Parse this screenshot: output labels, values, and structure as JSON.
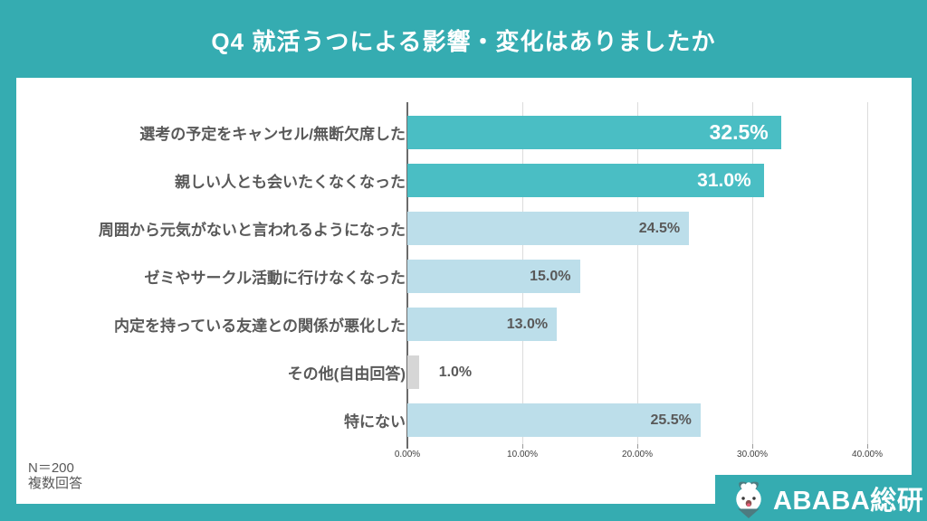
{
  "header": {
    "title": "Q4  就活うつによる影響・変化はありましたか"
  },
  "chart_data": {
    "type": "bar",
    "orientation": "horizontal",
    "title": "Q4 就活うつによる影響・変化はありましたか",
    "categories": [
      "選考の予定をキャンセル/無断欠席した",
      "親しい人とも会いたくなくなった",
      "周囲から元気がないと言われるようになった",
      "ゼミやサークル活動に行けなくなった",
      "内定を持っている友達との関係が悪化した",
      "その他(自由回答)",
      "特にない"
    ],
    "values": [
      32.5,
      31.0,
      24.5,
      15.0,
      13.0,
      1.0,
      25.5
    ],
    "value_labels": [
      "32.5%",
      "31.0%",
      "24.5%",
      "15.0%",
      "13.0%",
      "1.0%",
      "25.5%"
    ],
    "bar_colors": [
      "teal",
      "teal",
      "lightblue",
      "lightblue",
      "lightblue",
      "gray",
      "lightblue"
    ],
    "x_tick_labels": [
      "0.00%",
      "10.00%",
      "20.00%",
      "30.00%",
      "40.00%"
    ],
    "x_tick_values": [
      0,
      10,
      20,
      30,
      40
    ],
    "xlim": [
      0,
      43.8
    ],
    "grid": "vertical-gridlines",
    "legend": "none"
  },
  "colors": {
    "frame": "#35ACB1",
    "teal": "#4ABEC4",
    "lightblue": "#BCDEEA",
    "gray": "#D6D6D6",
    "grid": "#DCDCDC",
    "axis": "#6B6B6B",
    "category_text": "#595959",
    "value_text_dark": "#595959",
    "value_text_light": "#FFFFFF",
    "tick_text": "#404040"
  },
  "footnote": {
    "line1": "N＝200",
    "line2": "複数回答"
  },
  "footer": {
    "brand": "ABABA総研"
  }
}
